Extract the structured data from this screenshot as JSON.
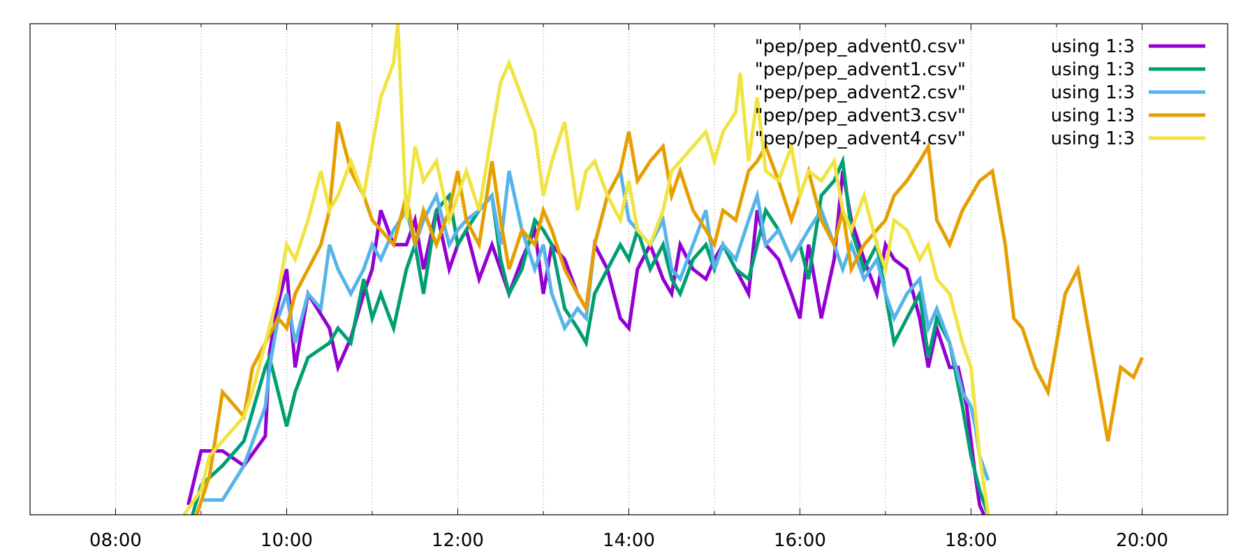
{
  "chart_data": {
    "type": "line",
    "title": "",
    "xlabel": "",
    "ylabel": "",
    "x_unit": "hours of day",
    "xlim": [
      7.0,
      21.0
    ],
    "ylim": [
      0,
      1
    ],
    "grid": {
      "x": true,
      "y": false
    },
    "y_ticks_shown": false,
    "x_ticks": [
      {
        "value": 8,
        "label": "08:00"
      },
      {
        "value": 10,
        "label": "10:00"
      },
      {
        "value": 12,
        "label": "12:00"
      },
      {
        "value": 14,
        "label": "14:00"
      },
      {
        "value": 16,
        "label": "16:00"
      },
      {
        "value": 18,
        "label": "18:00"
      },
      {
        "value": 20,
        "label": "20:00"
      }
    ],
    "legend_placement": "top-right",
    "series": [
      {
        "name": "\"pep/pep_advent0.csv\"",
        "spec": "using 1:3",
        "color": "#9400d3",
        "x": [
          8.85,
          9.0,
          9.25,
          9.5,
          9.75,
          9.8,
          9.9,
          10.0,
          10.1,
          10.25,
          10.5,
          10.6,
          10.75,
          10.9,
          11.0,
          11.1,
          11.25,
          11.4,
          11.5,
          11.6,
          11.75,
          11.9,
          12.0,
          12.1,
          12.25,
          12.4,
          12.5,
          12.6,
          12.75,
          12.9,
          13.0,
          13.1,
          13.25,
          13.4,
          13.5,
          13.6,
          13.75,
          13.9,
          14.0,
          14.1,
          14.25,
          14.4,
          14.5,
          14.6,
          14.75,
          14.9,
          15.0,
          15.1,
          15.25,
          15.4,
          15.5,
          15.6,
          15.75,
          15.9,
          16.0,
          16.1,
          16.25,
          16.4,
          16.5,
          16.6,
          16.75,
          16.9,
          17.0,
          17.1,
          17.25,
          17.4,
          17.5,
          17.6,
          17.75,
          17.85,
          17.95,
          18.0,
          18.05,
          18.1,
          18.15
        ],
        "y": [
          0.02,
          0.13,
          0.13,
          0.1,
          0.16,
          0.33,
          0.43,
          0.5,
          0.3,
          0.45,
          0.38,
          0.3,
          0.36,
          0.45,
          0.5,
          0.62,
          0.55,
          0.55,
          0.6,
          0.5,
          0.62,
          0.5,
          0.55,
          0.58,
          0.48,
          0.55,
          0.5,
          0.45,
          0.52,
          0.58,
          0.45,
          0.55,
          0.52,
          0.45,
          0.42,
          0.55,
          0.5,
          0.4,
          0.38,
          0.5,
          0.55,
          0.48,
          0.45,
          0.55,
          0.5,
          0.48,
          0.52,
          0.55,
          0.5,
          0.45,
          0.62,
          0.55,
          0.52,
          0.45,
          0.4,
          0.55,
          0.4,
          0.52,
          0.7,
          0.6,
          0.52,
          0.45,
          0.55,
          0.52,
          0.5,
          0.4,
          0.3,
          0.38,
          0.3,
          0.3,
          0.22,
          0.15,
          0.08,
          0.02,
          0.0
        ]
      },
      {
        "name": "\"pep/pep_advent1.csv\"",
        "spec": "using 1:3",
        "color": "#009e73",
        "x": [
          8.9,
          9.0,
          9.25,
          9.5,
          9.75,
          9.8,
          9.9,
          10.0,
          10.1,
          10.25,
          10.5,
          10.6,
          10.75,
          10.9,
          11.0,
          11.1,
          11.25,
          11.4,
          11.5,
          11.6,
          11.75,
          11.9,
          12.0,
          12.1,
          12.25,
          12.4,
          12.5,
          12.6,
          12.75,
          12.9,
          13.0,
          13.1,
          13.25,
          13.4,
          13.5,
          13.6,
          13.75,
          13.9,
          14.0,
          14.1,
          14.25,
          14.4,
          14.5,
          14.6,
          14.75,
          14.9,
          15.0,
          15.1,
          15.25,
          15.4,
          15.5,
          15.6,
          15.75,
          15.9,
          16.0,
          16.1,
          16.25,
          16.4,
          16.5,
          16.6,
          16.75,
          16.9,
          17.0,
          17.1,
          17.25,
          17.4,
          17.5,
          17.6,
          17.75,
          17.9,
          18.0,
          18.1,
          18.2
        ],
        "y": [
          0.0,
          0.06,
          0.1,
          0.15,
          0.3,
          0.32,
          0.25,
          0.18,
          0.25,
          0.32,
          0.35,
          0.38,
          0.35,
          0.48,
          0.4,
          0.45,
          0.38,
          0.5,
          0.55,
          0.45,
          0.62,
          0.65,
          0.55,
          0.58,
          0.62,
          0.65,
          0.52,
          0.45,
          0.5,
          0.6,
          0.58,
          0.55,
          0.42,
          0.38,
          0.35,
          0.45,
          0.5,
          0.55,
          0.52,
          0.58,
          0.5,
          0.55,
          0.48,
          0.45,
          0.52,
          0.55,
          0.5,
          0.55,
          0.5,
          0.48,
          0.55,
          0.62,
          0.58,
          0.52,
          0.55,
          0.48,
          0.65,
          0.68,
          0.72,
          0.58,
          0.5,
          0.55,
          0.45,
          0.35,
          0.4,
          0.45,
          0.32,
          0.4,
          0.35,
          0.22,
          0.12,
          0.05,
          0.0
        ]
      },
      {
        "name": "\"pep/pep_advent2.csv\"",
        "spec": "using 1:3",
        "color": "#56b4e9",
        "x": [
          9.0,
          9.25,
          9.5,
          9.75,
          9.8,
          9.9,
          10.0,
          10.1,
          10.25,
          10.4,
          10.5,
          10.6,
          10.75,
          10.9,
          11.0,
          11.1,
          11.25,
          11.4,
          11.5,
          11.6,
          11.75,
          11.9,
          12.0,
          12.1,
          12.25,
          12.4,
          12.5,
          12.6,
          12.75,
          12.9,
          13.0,
          13.1,
          13.25,
          13.4,
          13.5,
          13.6,
          13.75,
          13.9,
          14.0,
          14.1,
          14.25,
          14.4,
          14.5,
          14.6,
          14.75,
          14.9,
          15.0,
          15.1,
          15.25,
          15.4,
          15.5,
          15.6,
          15.75,
          15.9,
          16.0,
          16.1,
          16.25,
          16.4,
          16.5,
          16.6,
          16.75,
          16.9,
          17.0,
          17.1,
          17.25,
          17.4,
          17.5,
          17.6,
          17.75,
          17.9,
          18.0,
          18.05,
          18.1,
          18.2
        ],
        "y": [
          0.03,
          0.03,
          0.1,
          0.22,
          0.3,
          0.4,
          0.45,
          0.35,
          0.45,
          0.42,
          0.55,
          0.5,
          0.45,
          0.5,
          0.55,
          0.52,
          0.58,
          0.62,
          0.55,
          0.6,
          0.65,
          0.55,
          0.58,
          0.6,
          0.62,
          0.65,
          0.55,
          0.7,
          0.58,
          0.5,
          0.55,
          0.45,
          0.38,
          0.42,
          0.4,
          0.55,
          0.65,
          0.7,
          0.6,
          0.58,
          0.55,
          0.6,
          0.5,
          0.48,
          0.55,
          0.62,
          0.5,
          0.55,
          0.52,
          0.6,
          0.65,
          0.55,
          0.58,
          0.52,
          0.55,
          0.58,
          0.62,
          0.55,
          0.5,
          0.55,
          0.48,
          0.52,
          0.45,
          0.4,
          0.45,
          0.48,
          0.38,
          0.42,
          0.35,
          0.25,
          0.22,
          0.18,
          0.12,
          0.07
        ]
      },
      {
        "name": "\"pep/pep_advent3.csv\"",
        "spec": "using 1:3",
        "color": "#e69f00",
        "x": [
          8.95,
          9.1,
          9.25,
          9.5,
          9.6,
          9.75,
          9.9,
          10.0,
          10.1,
          10.25,
          10.4,
          10.5,
          10.6,
          10.75,
          10.9,
          11.0,
          11.1,
          11.25,
          11.4,
          11.5,
          11.6,
          11.75,
          11.9,
          12.0,
          12.1,
          12.25,
          12.4,
          12.5,
          12.6,
          12.75,
          12.9,
          13.0,
          13.1,
          13.25,
          13.4,
          13.5,
          13.6,
          13.75,
          13.9,
          14.0,
          14.1,
          14.25,
          14.4,
          14.5,
          14.6,
          14.75,
          14.9,
          15.0,
          15.1,
          15.25,
          15.4,
          15.5,
          15.6,
          15.75,
          15.9,
          16.0,
          16.1,
          16.25,
          16.4,
          16.5,
          16.6,
          16.75,
          16.9,
          17.0,
          17.1,
          17.25,
          17.4,
          17.5,
          17.6,
          17.75,
          17.9,
          18.0,
          18.1,
          18.25,
          18.4,
          18.5,
          18.6,
          18.75,
          18.9,
          19.0,
          19.1,
          19.25,
          19.4,
          19.5,
          19.6,
          19.75,
          19.9,
          20.0
        ],
        "y": [
          0.0,
          0.08,
          0.25,
          0.2,
          0.3,
          0.35,
          0.4,
          0.38,
          0.45,
          0.5,
          0.55,
          0.62,
          0.8,
          0.7,
          0.65,
          0.6,
          0.58,
          0.55,
          0.65,
          0.55,
          0.62,
          0.55,
          0.62,
          0.7,
          0.6,
          0.55,
          0.72,
          0.6,
          0.5,
          0.58,
          0.55,
          0.62,
          0.58,
          0.5,
          0.45,
          0.42,
          0.55,
          0.65,
          0.7,
          0.78,
          0.68,
          0.72,
          0.75,
          0.65,
          0.7,
          0.62,
          0.58,
          0.55,
          0.62,
          0.6,
          0.7,
          0.72,
          0.75,
          0.68,
          0.6,
          0.65,
          0.7,
          0.6,
          0.55,
          0.62,
          0.5,
          0.55,
          0.58,
          0.6,
          0.65,
          0.68,
          0.72,
          0.75,
          0.6,
          0.55,
          0.62,
          0.65,
          0.68,
          0.7,
          0.55,
          0.4,
          0.38,
          0.3,
          0.25,
          0.35,
          0.45,
          0.5,
          0.35,
          0.25,
          0.15,
          0.3,
          0.28,
          0.32
        ]
      },
      {
        "name": "\"pep/pep_advent4.csv\"",
        "spec": "using 1:3",
        "color": "#f0e442",
        "x": [
          8.8,
          9.0,
          9.1,
          9.25,
          9.5,
          9.6,
          9.75,
          9.9,
          10.0,
          10.1,
          10.25,
          10.4,
          10.5,
          10.6,
          10.75,
          10.9,
          11.0,
          11.1,
          11.25,
          11.3,
          11.4,
          11.5,
          11.6,
          11.75,
          11.9,
          12.0,
          12.1,
          12.25,
          12.4,
          12.5,
          12.6,
          12.75,
          12.9,
          13.0,
          13.1,
          13.25,
          13.4,
          13.5,
          13.6,
          13.75,
          13.9,
          14.0,
          14.1,
          14.25,
          14.4,
          14.5,
          14.6,
          14.75,
          14.9,
          15.0,
          15.1,
          15.25,
          15.3,
          15.4,
          15.5,
          15.6,
          15.75,
          15.9,
          16.0,
          16.1,
          16.25,
          16.4,
          16.5,
          16.6,
          16.75,
          16.9,
          17.0,
          17.1,
          17.25,
          17.4,
          17.5,
          17.6,
          17.75,
          17.9,
          18.0,
          18.1,
          18.2
        ],
        "y": [
          0.0,
          0.05,
          0.12,
          0.15,
          0.2,
          0.25,
          0.35,
          0.45,
          0.55,
          0.52,
          0.6,
          0.7,
          0.62,
          0.65,
          0.72,
          0.65,
          0.75,
          0.85,
          0.92,
          1.0,
          0.6,
          0.75,
          0.68,
          0.72,
          0.6,
          0.65,
          0.7,
          0.62,
          0.78,
          0.88,
          0.92,
          0.85,
          0.78,
          0.65,
          0.72,
          0.8,
          0.62,
          0.7,
          0.72,
          0.65,
          0.6,
          0.68,
          0.58,
          0.55,
          0.62,
          0.7,
          0.72,
          0.75,
          0.78,
          0.72,
          0.78,
          0.82,
          0.9,
          0.72,
          0.85,
          0.7,
          0.68,
          0.75,
          0.65,
          0.7,
          0.68,
          0.72,
          0.62,
          0.58,
          0.65,
          0.55,
          0.5,
          0.6,
          0.58,
          0.52,
          0.55,
          0.48,
          0.45,
          0.35,
          0.3,
          0.12,
          0.0
        ]
      }
    ]
  }
}
